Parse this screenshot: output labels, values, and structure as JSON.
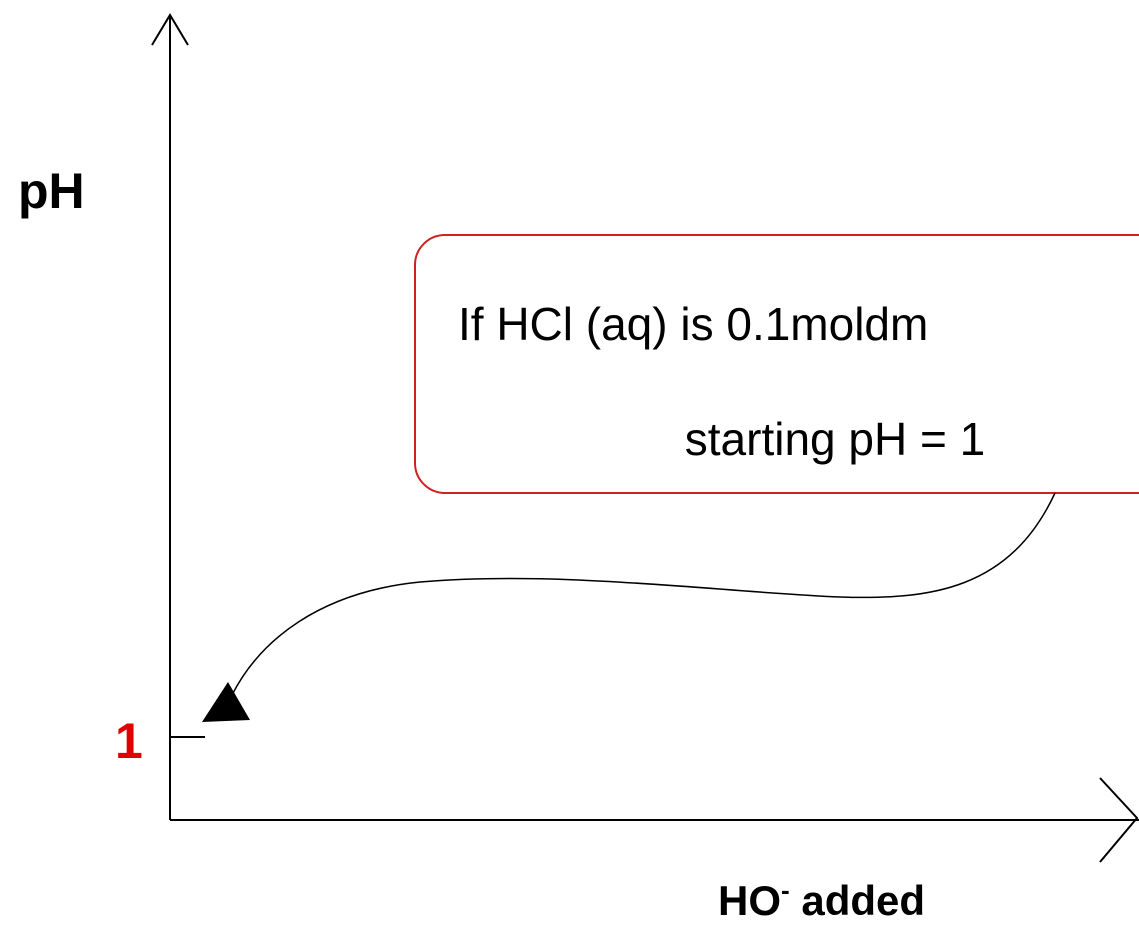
{
  "axes": {
    "y_label": "pH",
    "y_tick_label": "1",
    "x_label": {
      "main": "HO",
      "superscript": "-",
      "rest": " added"
    }
  },
  "callout": {
    "lines": [
      "If HCl (aq) is 0.1moldm",
      "starting pH = 1"
    ]
  }
}
